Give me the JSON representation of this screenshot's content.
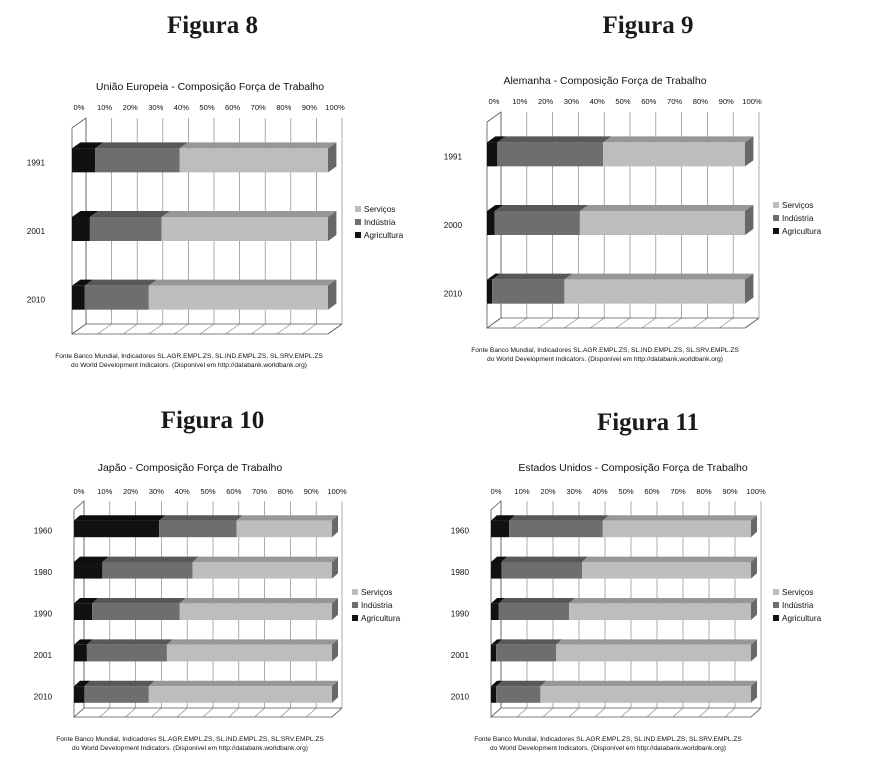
{
  "figures": [
    {
      "label": "Figura 8"
    },
    {
      "label": "Figura 9"
    },
    {
      "label": "Figura 10"
    },
    {
      "label": "Figura 11"
    }
  ],
  "legend": [
    "Serviços",
    "Indústria",
    "Agricultura"
  ],
  "colors": {
    "Agricultura": "#111111",
    "Indústria": "#6e6e6e",
    "Serviços": "#bdbdbd"
  },
  "source_lines": [
    "Fonte Banco Mundial, Indicadores  SL.AGR.EMPL.ZS,    SL.IND.EMPL.ZS,   SL.SRV.EMPL.ZS",
    "do World Development Indicators. (Disponível em http://databank.worldbank.org)"
  ],
  "chart_data": [
    {
      "type": "bar",
      "title": "União Europeia - Composição Força de Trabalho",
      "categories": [
        "1991",
        "2001",
        "2010"
      ],
      "x_ticks": [
        "0%",
        "10%",
        "20%",
        "30%",
        "40%",
        "50%",
        "60%",
        "70%",
        "80%",
        "90%",
        "100%"
      ],
      "xlim": [
        0,
        100
      ],
      "stacked": true,
      "series": [
        {
          "name": "Agricultura",
          "values": [
            9,
            7,
            5
          ]
        },
        {
          "name": "Indústria",
          "values": [
            33,
            28,
            25
          ]
        },
        {
          "name": "Serviços",
          "values": [
            58,
            65,
            70
          ]
        }
      ]
    },
    {
      "type": "bar",
      "title": "Alemanha - Composição Força de Trabalho",
      "categories": [
        "1991",
        "2000",
        "2010"
      ],
      "x_ticks": [
        "0%",
        "10%",
        "20%",
        "30%",
        "40%",
        "50%",
        "60%",
        "70%",
        "80%",
        "90%",
        "100%"
      ],
      "xlim": [
        0,
        100
      ],
      "stacked": true,
      "series": [
        {
          "name": "Agricultura",
          "values": [
            4,
            3,
            2
          ]
        },
        {
          "name": "Indústria",
          "values": [
            41,
            33,
            28
          ]
        },
        {
          "name": "Serviços",
          "values": [
            55,
            64,
            70
          ]
        }
      ]
    },
    {
      "type": "bar",
      "title": "Japão - Composição Força de Trabalho",
      "categories": [
        "1960",
        "1980",
        "1990",
        "2001",
        "2010"
      ],
      "x_ticks": [
        "0%",
        "10%",
        "20%",
        "30%",
        "40%",
        "50%",
        "60%",
        "70%",
        "80%",
        "90%",
        "100%"
      ],
      "xlim": [
        0,
        100
      ],
      "stacked": true,
      "series": [
        {
          "name": "Agricultura",
          "values": [
            33,
            11,
            7,
            5,
            4
          ]
        },
        {
          "name": "Indústria",
          "values": [
            30,
            35,
            34,
            31,
            25
          ]
        },
        {
          "name": "Serviços",
          "values": [
            37,
            54,
            59,
            64,
            71
          ]
        }
      ]
    },
    {
      "type": "bar",
      "title": "Estados Unidos - Composição Força de Trabalho",
      "categories": [
        "1960",
        "1980",
        "1990",
        "2001",
        "2010"
      ],
      "x_ticks": [
        "0%",
        "10%",
        "20%",
        "30%",
        "40%",
        "50%",
        "60%",
        "70%",
        "80%",
        "90%",
        "100%"
      ],
      "xlim": [
        0,
        100
      ],
      "stacked": true,
      "series": [
        {
          "name": "Agricultura",
          "values": [
            7,
            4,
            3,
            2,
            2
          ]
        },
        {
          "name": "Indústria",
          "values": [
            36,
            31,
            27,
            23,
            17
          ]
        },
        {
          "name": "Serviços",
          "values": [
            57,
            65,
            70,
            75,
            81
          ]
        }
      ]
    }
  ]
}
